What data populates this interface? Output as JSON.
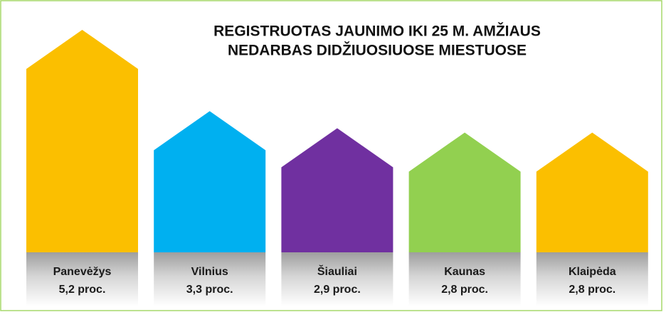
{
  "chart_data": {
    "type": "house-bar",
    "title": [
      "REGISTRUOTAS JAUNIMO IKI 25 M. AMŽIAUS",
      "NEDARBAS DIDŽIUOSIUOSE MIESTUOSE"
    ],
    "categories": [
      "Panevėžys",
      "Vilnius",
      "Šiauliai",
      "Kaunas",
      "Klaipėda"
    ],
    "values": [
      5.2,
      3.3,
      2.9,
      2.8,
      2.8
    ],
    "value_labels": [
      "5,2 proc.",
      "3,3 proc.",
      "2,9 proc.",
      "2,8 proc.",
      "2,8 proc."
    ],
    "colors": [
      "#fbbf00",
      "#00b0f0",
      "#7030a0",
      "#92d050",
      "#fbbf00"
    ]
  }
}
